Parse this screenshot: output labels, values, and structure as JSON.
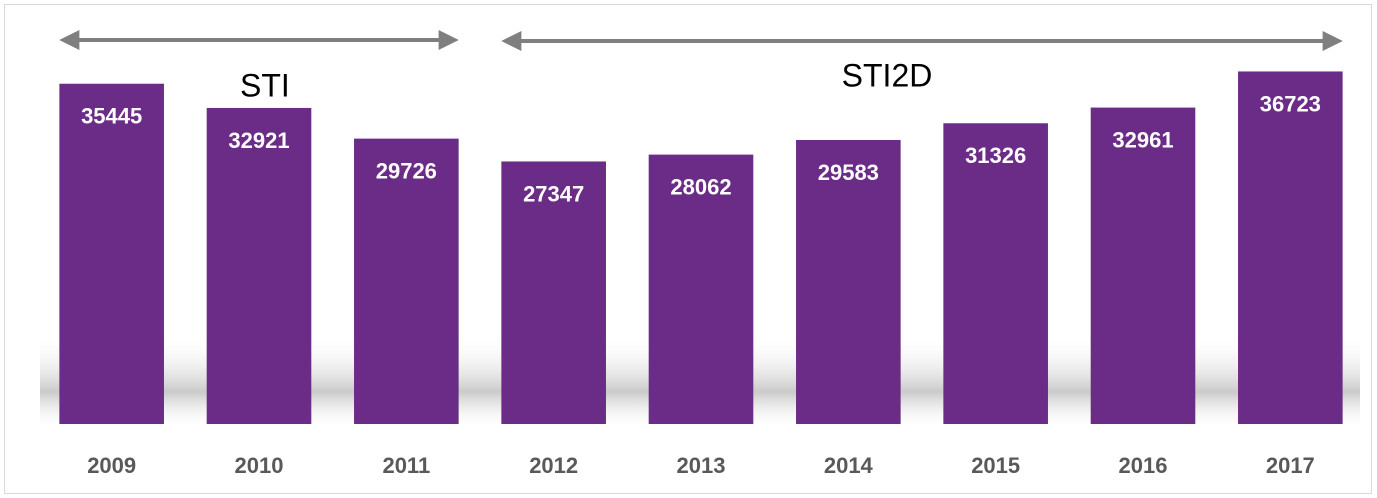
{
  "chart_data": {
    "type": "bar",
    "categories": [
      "2009",
      "2010",
      "2011",
      "2012",
      "2013",
      "2014",
      "2015",
      "2016",
      "2017"
    ],
    "values": [
      35445,
      32921,
      29726,
      27347,
      28062,
      29583,
      31326,
      32961,
      36723
    ],
    "color": "#6a2c86",
    "ylim": [
      0,
      40000
    ],
    "annotations": [
      {
        "text": "STI",
        "from": "2009",
        "to": "2011"
      },
      {
        "text": "STI2D",
        "from": "2012",
        "to": "2017"
      }
    ]
  }
}
